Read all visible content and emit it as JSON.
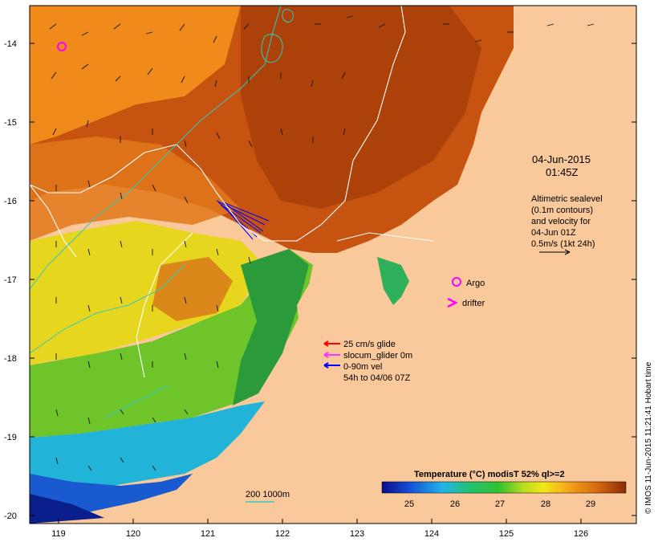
{
  "colors": {
    "land": "#f9c89b",
    "warm": "#b84a0a",
    "mid": "#f0a020",
    "cool": "#ccd820",
    "cold": "#2a9a3a",
    "coldest": "#0a1e8c",
    "contour": "#ffffff",
    "isobath": "#33c9c0",
    "argo": "#ff00ff",
    "glide_red": "#ff0000",
    "glide_magenta": "#ff33ff",
    "vel_blue": "#0000ff"
  },
  "axes": {
    "x_ticks": [
      "119",
      "120",
      "121",
      "122",
      "123",
      "124",
      "125",
      "126"
    ],
    "y_ticks": [
      "-14",
      "-15",
      "-16",
      "-17",
      "-18",
      "-19",
      "-20"
    ]
  },
  "datetime": {
    "date": "04-Jun-2015",
    "time": "01:45Z"
  },
  "altimetry_note": {
    "line1": "Altimetric sealevel",
    "line2": "(0.1m contours)",
    "line3": "and velocity for",
    "line4": "04-Jun 01Z",
    "line5": "0.5m/s (1kt 24h)"
  },
  "markers": {
    "argo": "Argo",
    "drifter_symbol": ">",
    "drifter": "drifter"
  },
  "glider_legend": {
    "l1": "25 cm/s glide",
    "l2": "slocum_glider 0m",
    "l3": "0-90m vel",
    "l4": "54h to 04/06 07Z"
  },
  "isobath_label": "200  1000m",
  "colorbar": {
    "title": "Temperature (°C) modisT 52% ql>=2",
    "ticks": [
      "25",
      "26",
      "27",
      "28",
      "29"
    ],
    "min": 24.3,
    "max": 29.8
  },
  "side_text": "© IMOS 11-Jun-2015 11:21:41 Hobart time"
}
